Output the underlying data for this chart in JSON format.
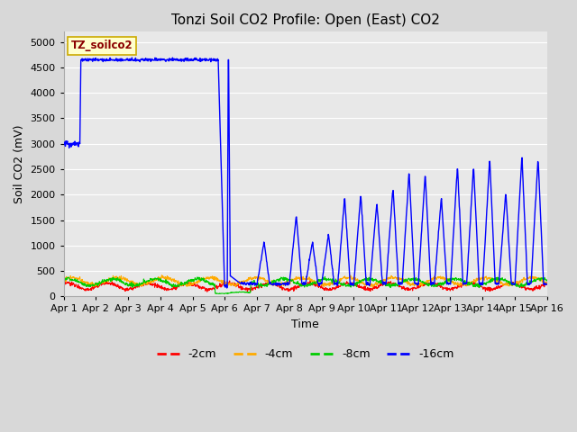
{
  "title": "Tonzi Soil CO2 Profile: Open (East) CO2",
  "ylabel": "Soil CO2 (mV)",
  "xlabel": "Time",
  "legend_label": "TZ_soilco2",
  "legend_entries": [
    "-2cm",
    "-4cm",
    "-8cm",
    "-16cm"
  ],
  "legend_colors": [
    "#ff0000",
    "#ffaa00",
    "#00cc00",
    "#0000ff"
  ],
  "ylim": [
    0,
    5200
  ],
  "yticks": [
    0,
    500,
    1000,
    1500,
    2000,
    2500,
    3000,
    3500,
    4000,
    4500,
    5000
  ],
  "xlim": [
    0,
    15
  ],
  "xtick_positions": [
    0,
    1,
    2,
    3,
    4,
    5,
    6,
    7,
    8,
    9,
    10,
    11,
    12,
    13,
    14,
    15
  ],
  "xtick_labels": [
    "Apr 1",
    "Apr 2",
    "Apr 3",
    "Apr 4",
    "Apr 5",
    "Apr 6",
    "Apr 7",
    "Apr 8",
    "Apr 9",
    "Apr 10",
    "Apr 11",
    "Apr 12",
    "Apr 13",
    "Apr 14",
    "Apr 15",
    "Apr 16"
  ],
  "plot_bg_color": "#e8e8e8",
  "grid_color": "#ffffff",
  "fig_bg_color": "#d8d8d8",
  "title_fontsize": 11,
  "axis_label_fontsize": 9,
  "tick_fontsize": 8,
  "legend_fontsize": 9,
  "figwidth": 6.4,
  "figheight": 4.8,
  "dpi": 100
}
